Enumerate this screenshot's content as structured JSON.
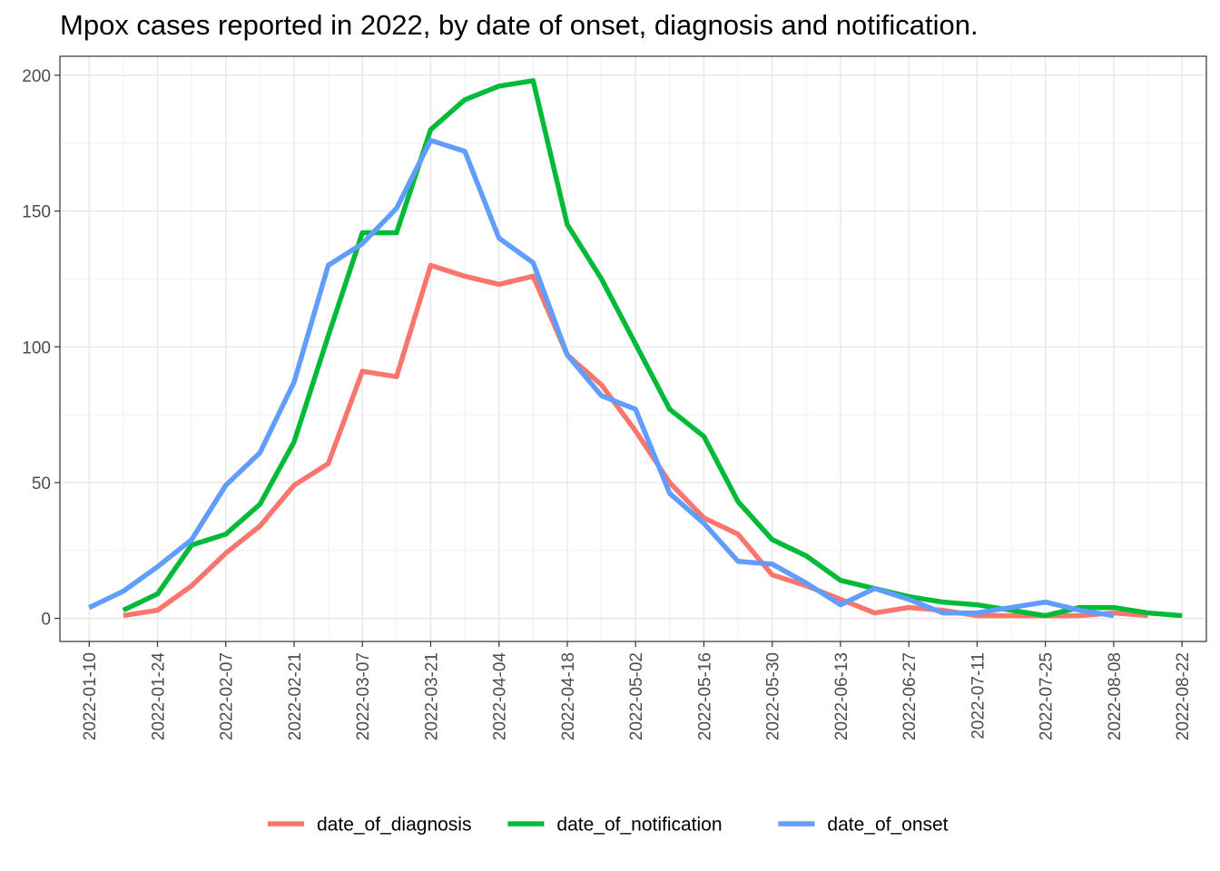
{
  "chart_data": {
    "type": "line",
    "title": "Mpox cases reported in 2022, by date of onset, diagnosis and notification.",
    "xlabel": "",
    "ylabel": "",
    "ylim": [
      -8.5,
      207
    ],
    "xlim": [
      "2022-01-04",
      "2022-08-27"
    ],
    "x_ticks": [
      "2022-01-10",
      "2022-01-24",
      "2022-02-07",
      "2022-02-21",
      "2022-03-07",
      "2022-03-21",
      "2022-04-04",
      "2022-04-18",
      "2022-05-02",
      "2022-05-16",
      "2022-05-30",
      "2022-06-13",
      "2022-06-27",
      "2022-07-11",
      "2022-07-25",
      "2022-08-08",
      "2022-08-22"
    ],
    "y_ticks": [
      0,
      50,
      100,
      150,
      200
    ],
    "grid": true,
    "legend_position": "bottom",
    "series": [
      {
        "name": "date_of_diagnosis",
        "color": "#F8766D",
        "x": [
          "2022-01-17",
          "2022-01-24",
          "2022-01-31",
          "2022-02-07",
          "2022-02-14",
          "2022-02-21",
          "2022-02-28",
          "2022-03-07",
          "2022-03-14",
          "2022-03-21",
          "2022-03-28",
          "2022-04-04",
          "2022-04-11",
          "2022-04-18",
          "2022-04-25",
          "2022-05-02",
          "2022-05-09",
          "2022-05-16",
          "2022-05-23",
          "2022-05-30",
          "2022-06-06",
          "2022-06-13",
          "2022-06-20",
          "2022-06-27",
          "2022-07-04",
          "2022-07-11",
          "2022-07-18",
          "2022-07-25",
          "2022-08-01",
          "2022-08-08",
          "2022-08-15"
        ],
        "y": [
          1,
          3,
          12,
          24,
          34,
          49,
          57,
          91,
          89,
          130,
          126,
          123,
          126,
          97,
          86,
          69,
          50,
          37,
          31,
          16,
          12,
          7,
          2,
          4,
          3,
          1,
          1,
          1,
          1,
          2,
          1
        ]
      },
      {
        "name": "date_of_notification",
        "color": "#00BA38",
        "x": [
          "2022-01-17",
          "2022-01-24",
          "2022-01-31",
          "2022-02-07",
          "2022-02-14",
          "2022-02-21",
          "2022-02-28",
          "2022-03-07",
          "2022-03-14",
          "2022-03-21",
          "2022-03-28",
          "2022-04-04",
          "2022-04-11",
          "2022-04-18",
          "2022-04-25",
          "2022-05-02",
          "2022-05-09",
          "2022-05-16",
          "2022-05-23",
          "2022-05-30",
          "2022-06-06",
          "2022-06-13",
          "2022-06-20",
          "2022-06-27",
          "2022-07-04",
          "2022-07-11",
          "2022-07-18",
          "2022-07-25",
          "2022-08-01",
          "2022-08-08",
          "2022-08-15",
          "2022-08-22"
        ],
        "y": [
          3,
          9,
          27,
          31,
          42,
          65,
          104,
          142,
          142,
          180,
          191,
          196,
          198,
          145,
          125,
          101,
          77,
          67,
          43,
          29,
          23,
          14,
          11,
          8,
          6,
          5,
          3,
          1,
          4,
          4,
          2,
          1
        ]
      },
      {
        "name": "date_of_onset",
        "color": "#619CFF",
        "x": [
          "2022-01-10",
          "2022-01-17",
          "2022-01-24",
          "2022-01-31",
          "2022-02-07",
          "2022-02-14",
          "2022-02-21",
          "2022-02-28",
          "2022-03-07",
          "2022-03-14",
          "2022-03-21",
          "2022-03-28",
          "2022-04-04",
          "2022-04-11",
          "2022-04-18",
          "2022-04-25",
          "2022-05-02",
          "2022-05-09",
          "2022-05-16",
          "2022-05-23",
          "2022-05-30",
          "2022-06-06",
          "2022-06-13",
          "2022-06-20",
          "2022-06-27",
          "2022-07-04",
          "2022-07-11",
          "2022-07-18",
          "2022-07-25",
          "2022-08-01",
          "2022-08-08"
        ],
        "y": [
          4,
          10,
          19,
          29,
          49,
          61,
          87,
          130,
          138,
          151,
          176,
          172,
          140,
          131,
          97,
          82,
          77,
          46,
          35,
          21,
          20,
          13,
          5,
          11,
          7,
          2,
          2,
          4,
          6,
          3,
          1
        ]
      }
    ]
  }
}
